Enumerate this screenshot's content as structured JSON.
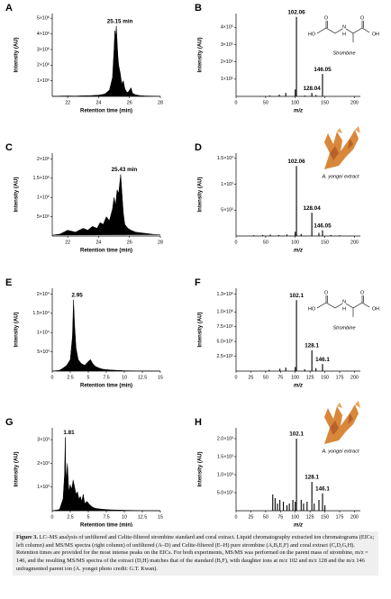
{
  "chart_data": [
    {
      "type": "line",
      "panel_label": "A",
      "ylabel": "Intensity (AU)",
      "xlabel": "Retention time (min)",
      "color": "#000000",
      "x": [
        21,
        21.5,
        22,
        22.5,
        23,
        23.5,
        24,
        24.4,
        24.7,
        24.9,
        25.0,
        25.05,
        25.1,
        25.15,
        25.2,
        25.25,
        25.3,
        25.4,
        25.5,
        25.6,
        25.7,
        25.8,
        25.9,
        26.0,
        26.1,
        26.2,
        26.4,
        26.7,
        27,
        27.5,
        28
      ],
      "values": [
        0,
        20000,
        30000,
        20000,
        40000,
        50000,
        80000,
        150000,
        400000,
        1200000,
        3000000,
        4200000,
        3800000,
        4500000,
        3500000,
        2600000,
        2000000,
        1500000,
        800000,
        1000000,
        500000,
        300000,
        250000,
        400000,
        550000,
        200000,
        100000,
        50000,
        30000,
        20000,
        10000
      ],
      "xlim": [
        21,
        28
      ],
      "xticks": [
        22,
        24,
        26,
        28
      ],
      "ylim": [
        0,
        5300000
      ],
      "yticks": [
        {
          "value": 1000000,
          "label": "1×10⁶"
        },
        {
          "value": 2000000,
          "label": "2×10⁶"
        },
        {
          "value": 3000000,
          "label": "3×10⁶"
        },
        {
          "value": 4000000,
          "label": "4×10⁶"
        },
        {
          "value": 5000000,
          "label": "5×10⁶"
        }
      ],
      "annotations": [
        "25.15 min"
      ]
    },
    {
      "type": "bar",
      "panel_label": "B",
      "ylabel": "Intensity (AU)",
      "xlabel": "m/z",
      "color": "#000000",
      "inset": "structure",
      "inset_label": "Strombine",
      "structure_labels": [
        "HO",
        "O",
        "N",
        "H",
        "O",
        "OH"
      ],
      "x": [
        57,
        73,
        84,
        100,
        102.06,
        116,
        128.04,
        135,
        146.05
      ],
      "values": [
        5000,
        10000,
        20000,
        40000,
        460000,
        5000,
        20000,
        8000,
        130000
      ],
      "xlim": [
        0,
        210
      ],
      "xticks": [
        0,
        50,
        100,
        150,
        200
      ],
      "ylim": [
        0,
        480000
      ],
      "yticks": [
        {
          "value": 100000,
          "label": "1×10⁵"
        },
        {
          "value": 200000,
          "label": "2×10⁵"
        },
        {
          "value": 300000,
          "label": "3×10⁵"
        },
        {
          "value": 400000,
          "label": "4×10⁵"
        }
      ],
      "annotations": [
        "102.06",
        "146.05",
        "128.04"
      ]
    },
    {
      "type": "line",
      "panel_label": "C",
      "ylabel": "Intensity (AU)",
      "xlabel": "Retention time (min)",
      "color": "#000000",
      "x": [
        21,
        21.5,
        22,
        22.5,
        23,
        23.3,
        23.6,
        23.9,
        24.1,
        24.3,
        24.5,
        24.7,
        24.9,
        25.0,
        25.1,
        25.2,
        25.3,
        25.43,
        25.5,
        25.6,
        25.7,
        25.9,
        26.1,
        26.4,
        26.8,
        27.2,
        27.6,
        28
      ],
      "values": [
        20000,
        50000,
        150000,
        100000,
        200000,
        150000,
        250000,
        200000,
        350000,
        300000,
        500000,
        400000,
        700000,
        1000000,
        800000,
        1200000,
        1100000,
        1600000,
        1200000,
        600000,
        300000,
        200000,
        150000,
        100000,
        80000,
        60000,
        40000,
        30000
      ],
      "xlim": [
        21,
        28
      ],
      "xticks": [
        22,
        24,
        26,
        28
      ],
      "ylim": [
        0,
        2150000
      ],
      "yticks": [
        {
          "value": 500000,
          "label": "5×10⁵"
        },
        {
          "value": 1000000,
          "label": "1×10⁶"
        },
        {
          "value": 1500000,
          "label": "1.5×10⁶"
        },
        {
          "value": 2000000,
          "label": "2×10⁶"
        }
      ],
      "annotations": [
        "25.43 min"
      ]
    },
    {
      "type": "bar",
      "panel_label": "D",
      "ylabel": "Intensity (AU)",
      "xlabel": "m/z",
      "color": "#000000",
      "inset": "coral",
      "inset_label": "A. yongei extract",
      "x": [
        30,
        45,
        58,
        72,
        86,
        100,
        102.06,
        110,
        128.04,
        140,
        146.05,
        160,
        175
      ],
      "values": [
        15,
        20,
        25,
        20,
        30,
        80,
        1350,
        40,
        450,
        60,
        110,
        20,
        15
      ],
      "xlim": [
        0,
        210
      ],
      "xticks": [
        0,
        50,
        100,
        150,
        200
      ],
      "ylim": [
        0,
        1600
      ],
      "yticks": [
        {
          "value": 500,
          "label": "5×10²"
        },
        {
          "value": 1000,
          "label": "1×10³"
        },
        {
          "value": 1500,
          "label": "1.5×10³"
        }
      ],
      "annotations": [
        "102.06",
        "128.04",
        "146.05"
      ]
    },
    {
      "type": "line",
      "panel_label": "E",
      "ylabel": "Intensity (AU)",
      "xlabel": "Retention time (min)",
      "color": "#000000",
      "x": [
        0,
        1,
        1.5,
        2,
        2.5,
        2.8,
        2.95,
        3.1,
        3.3,
        3.6,
        4,
        4.5,
        5,
        5.3,
        5.6,
        6,
        6.5,
        7,
        8,
        9,
        10,
        12,
        14,
        15
      ],
      "values": [
        0,
        200,
        800,
        1500,
        3000,
        9000,
        18500,
        12000,
        6000,
        3000,
        2000,
        1500,
        2500,
        3000,
        2000,
        1200,
        800,
        500,
        300,
        200,
        100,
        50,
        20,
        0
      ],
      "xlim": [
        0,
        15
      ],
      "xticks": [
        0,
        2.5,
        5,
        7.5,
        10,
        12.5,
        15
      ],
      "ylim": [
        0,
        21500
      ],
      "yticks": [
        {
          "value": 5000,
          "label": "5×10³"
        },
        {
          "value": 10000,
          "label": "1×10⁴"
        },
        {
          "value": 15000,
          "label": "1.5×10⁴"
        },
        {
          "value": 20000,
          "label": "2×10⁴"
        }
      ],
      "annotations": [
        "2.95"
      ]
    },
    {
      "type": "bar",
      "panel_label": "F",
      "ylabel": "Intensity (AU)",
      "xlabel": "m/z",
      "color": "#000000",
      "inset": "structure",
      "inset_label": "Strombine",
      "structure_labels": [
        "HO",
        "O",
        "N",
        "H",
        "O",
        "OH"
      ],
      "x": [
        56,
        74,
        84,
        100,
        102.1,
        116,
        128.1,
        135,
        146.1
      ],
      "values": [
        20000,
        40000,
        60000,
        70000,
        1200000,
        30000,
        350000,
        50000,
        120000
      ],
      "xlim": [
        0,
        210
      ],
      "xticks": [
        0,
        25,
        50,
        75,
        100,
        125,
        150,
        175,
        200
      ],
      "ylim": [
        0,
        1400000
      ],
      "yticks": [
        {
          "value": 250000,
          "label": "2.5×10⁵"
        },
        {
          "value": 500000,
          "label": "5.0×10⁵"
        },
        {
          "value": 750000,
          "label": "7.5×10⁵"
        },
        {
          "value": 1000000,
          "label": "1.0×10⁶"
        },
        {
          "value": 1300000,
          "label": "1.3×10⁶"
        }
      ],
      "annotations": [
        "102.1",
        "128.1",
        "146.1"
      ]
    },
    {
      "type": "line",
      "panel_label": "G",
      "ylabel": "Intensity (AU)",
      "xlabel": "Retention time (min)",
      "color": "#000000",
      "x": [
        0,
        1,
        1.5,
        1.7,
        1.81,
        1.9,
        2.1,
        2.3,
        2.5,
        2.7,
        2.9,
        3.1,
        3.3,
        3.5,
        3.7,
        3.9,
        4.1,
        4.3,
        4.5,
        4.8,
        5.2,
        5.6,
        6,
        7,
        8,
        10,
        12,
        15
      ],
      "values": [
        0,
        50,
        500,
        1500,
        3100,
        1200,
        2000,
        800,
        1100,
        900,
        1300,
        1000,
        700,
        800,
        500,
        600,
        400,
        700,
        300,
        400,
        250,
        150,
        100,
        60,
        40,
        20,
        10,
        0
      ],
      "xlim": [
        0,
        15
      ],
      "xticks": [
        0,
        2.5,
        5,
        7.5,
        10,
        12.5,
        15
      ],
      "ylim": [
        0,
        3500
      ],
      "yticks": [
        {
          "value": 1000,
          "label": "1×10³"
        },
        {
          "value": 2000,
          "label": "2×10³"
        },
        {
          "value": 3000,
          "label": "3×10³"
        }
      ],
      "annotations": [
        "1.81"
      ]
    },
    {
      "type": "bar",
      "panel_label": "H",
      "ylabel": "Intensity (AU)",
      "xlabel": "m/z",
      "color": "#000000",
      "inset": "coral",
      "inset_label": "A. yongei extract",
      "x": [
        62,
        66,
        70,
        74,
        80,
        86,
        90,
        96,
        100,
        102.1,
        110,
        114,
        120,
        128.1,
        132,
        140,
        146.1,
        150
      ],
      "values": [
        450,
        350,
        200,
        300,
        250,
        150,
        200,
        300,
        250,
        2000,
        300,
        200,
        250,
        800,
        200,
        300,
        480,
        150
      ],
      "xlim": [
        0,
        210
      ],
      "xticks": [
        0,
        25,
        50,
        75,
        100,
        125,
        150,
        175,
        200
      ],
      "ylim": [
        0,
        2300
      ],
      "yticks": [
        {
          "value": 500,
          "label": "5.0×10²"
        },
        {
          "value": 1000,
          "label": "1.0×10³"
        },
        {
          "value": 1500,
          "label": "1.5×10³"
        },
        {
          "value": 2000,
          "label": "2.0×10³"
        }
      ],
      "annotations": [
        "102.1",
        "128.1",
        "146.1"
      ]
    }
  ],
  "caption": {
    "label": "Figure 3.",
    "text": "LC–MS analysis of unfiltered and Celite-filtered strombine standard and coral extract. Liquid chromatography extracted ion chromatograms (EICs; left column) and MS/MS spectra (right column) of unfiltered (A–D) and Celite-filtered (E–H) pure strombine (A,B,E,F) and coral extract (C,D,G,H). Retention times are provided for the most intense peaks on the EICs. For both experiments, MS/MS was performed on the parent mass of strombine, m/z = 146, and the resulting MS/MS spectra of the extract (D,H) matches that of the standard (B,F), with daughter ions at m/z 102 and m/z 128 and the m/z 146 unfragmented parent ion (A. yongei photo credit: G.T. Kwan)."
  }
}
